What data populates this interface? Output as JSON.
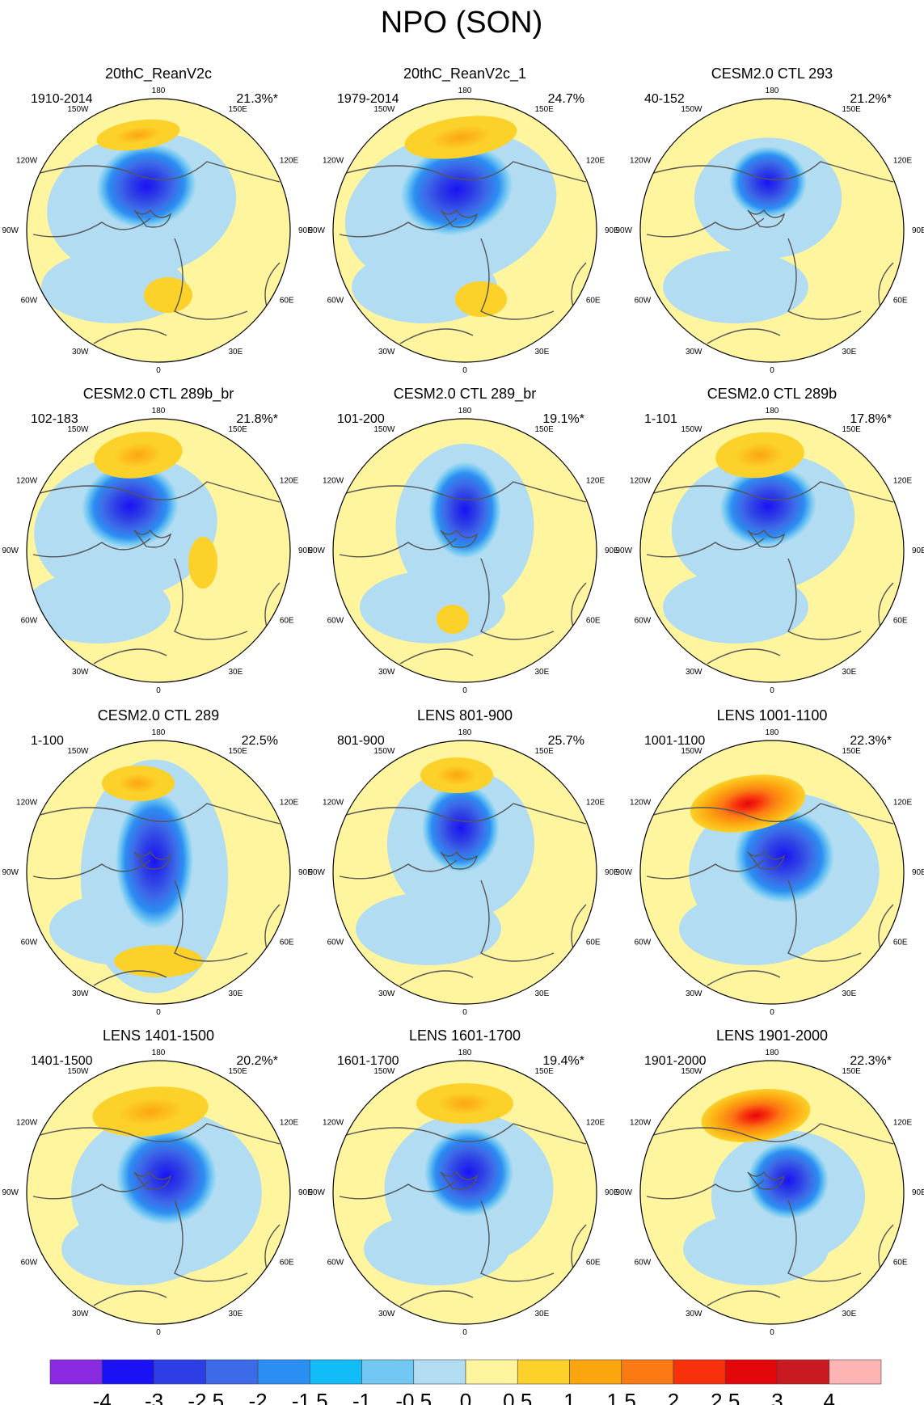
{
  "figure": {
    "title": "NPO (SON)",
    "longitude_labels": [
      "180",
      "150E",
      "120E",
      "90E",
      "60E",
      "30E",
      "0",
      "30W",
      "60W",
      "90W",
      "120W",
      "150W"
    ]
  },
  "panels": [
    {
      "title": "20thC_ReanV2c",
      "period": "1910-2014",
      "variance": "21.3%*"
    },
    {
      "title": "20thC_ReanV2c_1",
      "period": "1979-2014",
      "variance": "24.7%"
    },
    {
      "title": "CESM2.0 CTL 293",
      "period": "40-152",
      "variance": "21.2%*"
    },
    {
      "title": "CESM2.0 CTL 289b_br",
      "period": "102-183",
      "variance": "21.8%*"
    },
    {
      "title": "CESM2.0 CTL 289_br",
      "period": "101-200",
      "variance": "19.1%*"
    },
    {
      "title": "CESM2.0 CTL 289b",
      "period": "1-101",
      "variance": "17.8%*"
    },
    {
      "title": "CESM2.0 CTL 289",
      "period": "1-100",
      "variance": "22.5%"
    },
    {
      "title": "LENS 801-900",
      "period": "801-900",
      "variance": "25.7%"
    },
    {
      "title": "LENS 1001-1100",
      "period": "1001-1100",
      "variance": "22.3%*"
    },
    {
      "title": "LENS 1401-1500",
      "period": "1401-1500",
      "variance": "20.2%*"
    },
    {
      "title": "LENS 1601-1700",
      "period": "1601-1700",
      "variance": "19.4%*"
    },
    {
      "title": "LENS 1901-2000",
      "period": "1901-2000",
      "variance": "22.3%*"
    }
  ],
  "colorbar": {
    "tick_labels": [
      "-4",
      "-3",
      "-2.5",
      "-2",
      "-1.5",
      "-1",
      "-0.5",
      "0",
      "0.5",
      "1",
      "1.5",
      "2",
      "2.5",
      "3",
      "4"
    ],
    "colors": [
      "#8a2be2",
      "#1a12f5",
      "#2e3ee6",
      "#3d6ae8",
      "#2b8ef2",
      "#12bdf7",
      "#72c8f2",
      "#b2dcf2",
      "#fff59e",
      "#fcd12a",
      "#fca60f",
      "#fb7a14",
      "#f8300c",
      "#e3070c",
      "#c91a22",
      "#ffb4b4"
    ]
  }
}
